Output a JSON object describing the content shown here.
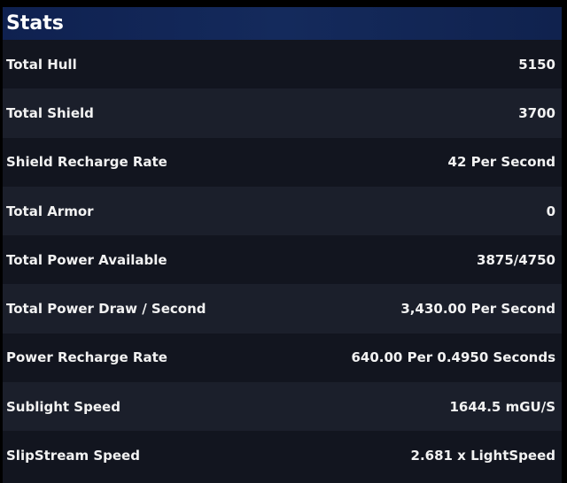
{
  "header": {
    "title": "Stats"
  },
  "stats": [
    {
      "label": "Total Hull",
      "value": "5150"
    },
    {
      "label": "Total Shield",
      "value": "3700"
    },
    {
      "label": "Shield Recharge Rate",
      "value": "42 Per Second"
    },
    {
      "label": "Total Armor",
      "value": "0"
    },
    {
      "label": "Total Power Available",
      "value": "3875/4750"
    },
    {
      "label": "Total Power Draw / Second",
      "value": "3,430.00 Per Second"
    },
    {
      "label": "Power Recharge Rate",
      "value": "640.00 Per 0.4950 Seconds"
    },
    {
      "label": "Sublight Speed",
      "value": "1644.5 mGU/S"
    },
    {
      "label": "SlipStream Speed",
      "value": "2.681 x LightSpeed"
    }
  ]
}
